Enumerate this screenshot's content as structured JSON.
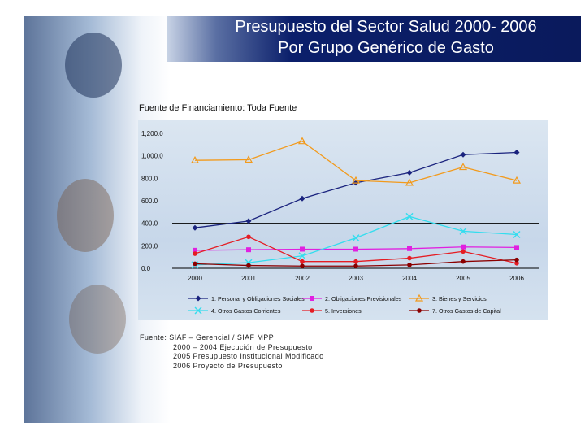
{
  "title": {
    "line1": "Presupuesto del Sector Salud 2000- 2006",
    "line2": "Por Grupo Genérico de Gasto"
  },
  "subtitle": "Fuente de Financiamiento: Toda Fuente",
  "source": {
    "label": "Fuente: SIAF – Gerencial / SIAF MPP",
    "lines": [
      "2000 – 2004 Ejecución de Presupuesto",
      "2005 Presupuesto Institucional Modificado",
      "2006 Proyecto de Presupuesto"
    ]
  },
  "chart_data": {
    "type": "line",
    "x": [
      "2000",
      "2001",
      "2002",
      "2003",
      "2004",
      "2005",
      "2006"
    ],
    "yticks": [
      "1,200.0",
      "1,000.0",
      "800.0",
      "600.0",
      "400.0",
      "200.0",
      "0.0"
    ],
    "ylim": [
      0,
      1200
    ],
    "reference_line": 400,
    "legend_position": "bottom",
    "series": [
      {
        "name": "1. Personal y Obligaciones Sociales",
        "color": "#1a237e",
        "marker": "diamond",
        "values": [
          360,
          420,
          620,
          760,
          850,
          1010,
          1030
        ]
      },
      {
        "name": "2. Obligaciones Previsionales",
        "color": "#e020e0",
        "marker": "square",
        "values": [
          160,
          165,
          170,
          170,
          175,
          190,
          185
        ]
      },
      {
        "name": "3. Bienes y Servicios",
        "color": "#f29a1c",
        "marker": "triangle",
        "values": [
          960,
          965,
          1130,
          780,
          760,
          900,
          780
        ]
      },
      {
        "name": "4. Otros Gastos Corrientes",
        "color": "#33ddee",
        "marker": "x",
        "values": [
          30,
          50,
          110,
          270,
          460,
          330,
          300
        ]
      },
      {
        "name": "5. Inversiones",
        "color": "#e51c23",
        "marker": "circle",
        "values": [
          130,
          280,
          60,
          60,
          90,
          150,
          45
        ]
      },
      {
        "name": "7. Otros Gastos de Capital",
        "color": "#8b0000",
        "marker": "circle",
        "values": [
          40,
          25,
          20,
          20,
          30,
          60,
          75
        ]
      }
    ]
  }
}
